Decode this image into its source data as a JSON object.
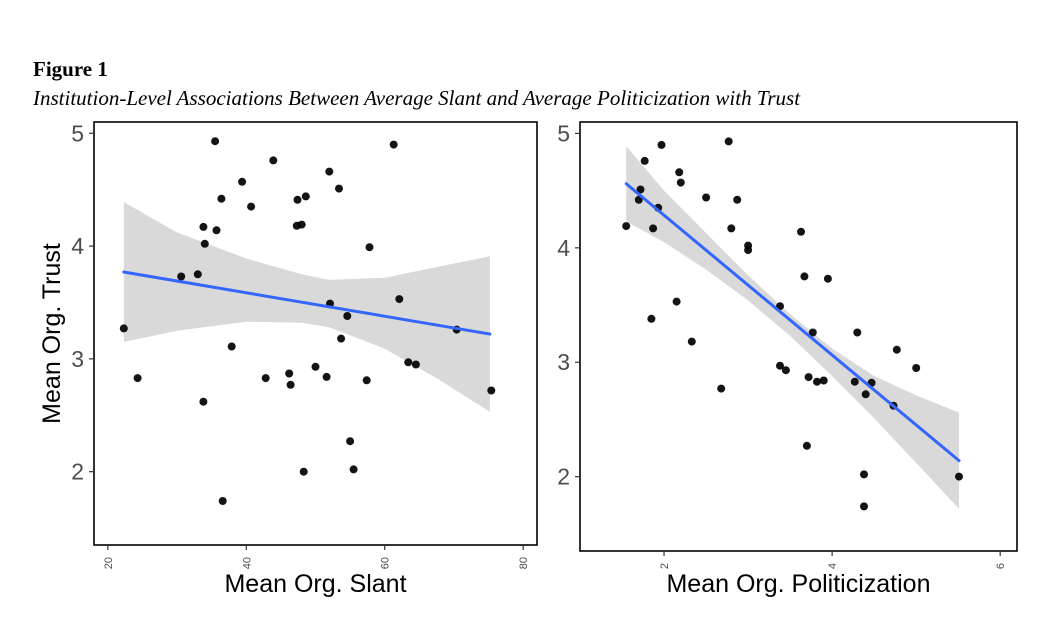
{
  "figure": {
    "label": "Figure 1",
    "caption": "Institution-Level Associations Between Average Slant and Average Politicization with Trust"
  },
  "colors": {
    "fit_line": "#3366ff",
    "ribbon": "#d9d9d9",
    "point": "#000000"
  },
  "chart_data": [
    {
      "type": "scatter",
      "xlabel": "Mean Org. Slant",
      "ylabel": "Mean Org. Trust",
      "xlim": [
        18,
        82
      ],
      "ylim": [
        1.35,
        5.1
      ],
      "x_ticks": [
        20,
        40,
        60,
        80
      ],
      "y_ticks": [
        2,
        3,
        4,
        5
      ],
      "x_tick_rotated": true,
      "show_ylabel": true,
      "points": [
        [
          22.3,
          3.27
        ],
        [
          24.3,
          2.83
        ],
        [
          30.6,
          3.73
        ],
        [
          33.0,
          3.75
        ],
        [
          33.8,
          2.62
        ],
        [
          33.8,
          4.17
        ],
        [
          34.0,
          4.02
        ],
        [
          35.5,
          4.93
        ],
        [
          35.7,
          4.14
        ],
        [
          36.4,
          4.42
        ],
        [
          36.6,
          1.74
        ],
        [
          37.9,
          3.11
        ],
        [
          39.4,
          4.57
        ],
        [
          40.7,
          4.35
        ],
        [
          42.8,
          2.83
        ],
        [
          43.9,
          4.76
        ],
        [
          46.2,
          2.87
        ],
        [
          46.4,
          2.77
        ],
        [
          47.3,
          4.18
        ],
        [
          47.4,
          4.41
        ],
        [
          48.0,
          4.19
        ],
        [
          48.3,
          2.0
        ],
        [
          48.6,
          4.44
        ],
        [
          50.0,
          2.93
        ],
        [
          51.6,
          2.84
        ],
        [
          52.0,
          4.66
        ],
        [
          52.1,
          3.49
        ],
        [
          53.4,
          4.51
        ],
        [
          53.7,
          3.18
        ],
        [
          54.6,
          3.38
        ],
        [
          55.0,
          2.27
        ],
        [
          55.5,
          2.02
        ],
        [
          57.4,
          2.81
        ],
        [
          57.8,
          3.99
        ],
        [
          61.3,
          4.9
        ],
        [
          62.1,
          3.53
        ],
        [
          63.4,
          2.97
        ],
        [
          64.5,
          2.95
        ],
        [
          70.4,
          3.26
        ],
        [
          75.4,
          2.72
        ]
      ],
      "fit": {
        "x": [
          22.3,
          75.2
        ],
        "y": [
          3.77,
          3.22
        ]
      },
      "ribbon": {
        "x": [
          22.3,
          30.0,
          40.0,
          48.0,
          52.0,
          60.0,
          68.0,
          75.2
        ],
        "upper": [
          4.39,
          4.12,
          3.89,
          3.75,
          3.7,
          3.72,
          3.82,
          3.91
        ],
        "lower": [
          3.15,
          3.25,
          3.33,
          3.32,
          3.28,
          3.09,
          2.81,
          2.53
        ]
      }
    },
    {
      "type": "scatter",
      "xlabel": "Mean Org. Politicization",
      "ylabel": "",
      "xlim": [
        1.0,
        6.2
      ],
      "ylim": [
        1.35,
        5.1
      ],
      "x_ticks": [
        2,
        4,
        6
      ],
      "y_ticks": [
        2,
        3,
        4,
        5
      ],
      "x_tick_rotated": true,
      "show_ylabel": false,
      "points": [
        [
          1.55,
          4.19
        ],
        [
          1.7,
          4.42
        ],
        [
          1.72,
          4.51
        ],
        [
          1.77,
          4.76
        ],
        [
          1.85,
          3.38
        ],
        [
          1.87,
          4.17
        ],
        [
          1.93,
          4.35
        ],
        [
          1.97,
          4.9
        ],
        [
          2.15,
          3.53
        ],
        [
          2.18,
          4.66
        ],
        [
          2.2,
          4.57
        ],
        [
          2.33,
          3.18
        ],
        [
          2.5,
          4.44
        ],
        [
          2.68,
          2.77
        ],
        [
          2.77,
          4.93
        ],
        [
          2.8,
          4.17
        ],
        [
          2.87,
          4.42
        ],
        [
          3.0,
          4.02
        ],
        [
          3.0,
          3.98
        ],
        [
          3.38,
          2.97
        ],
        [
          3.38,
          3.49
        ],
        [
          3.45,
          2.93
        ],
        [
          3.63,
          4.14
        ],
        [
          3.67,
          3.75
        ],
        [
          3.7,
          2.27
        ],
        [
          3.72,
          2.87
        ],
        [
          3.77,
          3.26
        ],
        [
          3.82,
          2.83
        ],
        [
          3.9,
          2.84
        ],
        [
          3.95,
          3.73
        ],
        [
          4.27,
          2.83
        ],
        [
          4.3,
          3.26
        ],
        [
          4.38,
          2.02
        ],
        [
          4.38,
          1.74
        ],
        [
          4.4,
          2.72
        ],
        [
          4.47,
          2.82
        ],
        [
          4.73,
          2.62
        ],
        [
          4.77,
          3.11
        ],
        [
          5.0,
          2.95
        ],
        [
          5.51,
          2.0
        ]
      ],
      "fit": {
        "x": [
          1.55,
          5.51
        ],
        "y": [
          4.56,
          2.14
        ]
      },
      "ribbon": {
        "x": [
          1.55,
          2.0,
          2.5,
          3.0,
          3.5,
          4.0,
          4.5,
          5.0,
          5.51
        ],
        "upper": [
          4.89,
          4.5,
          4.13,
          3.76,
          3.42,
          3.12,
          2.88,
          2.71,
          2.56
        ],
        "lower": [
          4.23,
          4.05,
          3.81,
          3.54,
          3.23,
          2.88,
          2.51,
          2.12,
          1.72
        ]
      }
    }
  ]
}
